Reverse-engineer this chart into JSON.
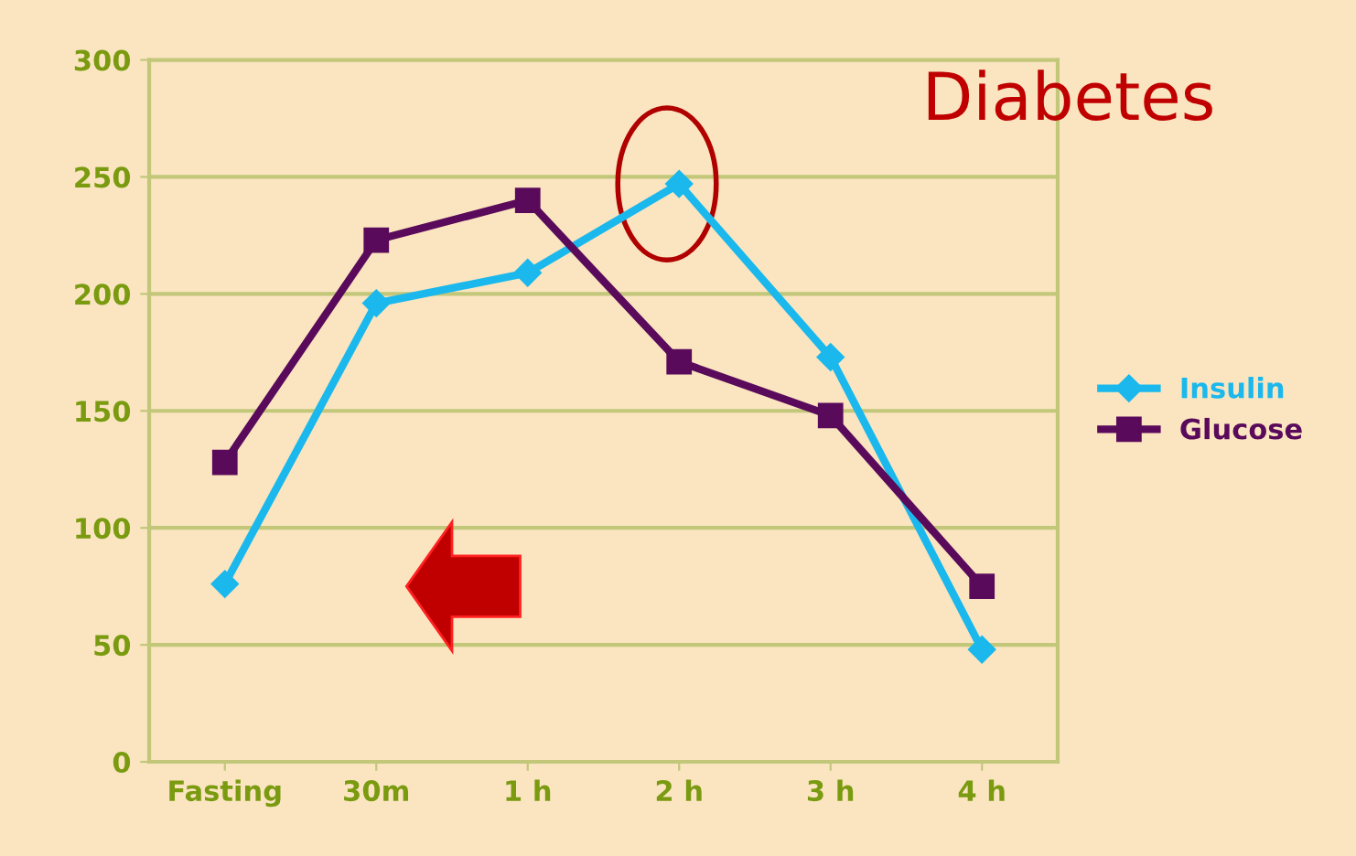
{
  "chart_data": {
    "type": "line",
    "categories": [
      "Fasting",
      "30m",
      "1 h",
      "2 h",
      "3 h",
      "4 h"
    ],
    "series": [
      {
        "name": "Insulin",
        "color": "#1ab8ec",
        "values": [
          76,
          196,
          209,
          247,
          173,
          48
        ],
        "marker": "diamond"
      },
      {
        "name": "Glucose",
        "color": "#5a0a5a",
        "values": [
          128,
          223,
          240,
          171,
          148,
          75
        ],
        "marker": "square"
      }
    ],
    "ylim": [
      0,
      300
    ],
    "yticks": [
      0,
      50,
      100,
      150,
      200,
      250,
      300
    ],
    "grid": "y",
    "legend": "right",
    "line_style": "solid",
    "annotations": [
      "Diabetes"
    ]
  }
}
